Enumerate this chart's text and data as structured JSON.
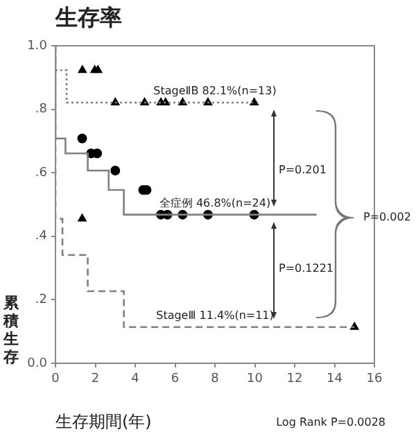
{
  "chart_data": {
    "type": "step",
    "title": "生存率",
    "xlabel": "生存期間(年)",
    "ylabel": "累積生存",
    "xlim": [
      0,
      16
    ],
    "xticks": [
      0,
      2,
      4,
      6,
      8,
      10,
      12,
      14,
      16
    ],
    "ylim": [
      0,
      1
    ],
    "yticks": [
      {
        "value": 0,
        "label": "0.0"
      },
      {
        "value": 0.2,
        "label": ".2"
      },
      {
        "value": 0.4,
        "label": ".4"
      },
      {
        "value": 0.6,
        "label": ".6"
      },
      {
        "value": 0.8,
        "label": ".8"
      },
      {
        "value": 1,
        "label": "1.0"
      }
    ],
    "grid": false,
    "legend": false,
    "series": [
      {
        "name": "StageⅡB 82.1%(n=13)",
        "color": "#808080",
        "line_style": "dotted",
        "marker": "none",
        "x": [
          0,
          0.56,
          2.65,
          10.0
        ],
        "values": [
          1.0,
          0.923,
          0.821,
          0.821
        ]
      },
      {
        "name": "全症例 46.8%(n=24)",
        "color": "#808080",
        "line_style": "solid",
        "marker": "none",
        "x": [
          0,
          0.5,
          1.62,
          2.67,
          3.43,
          4.75,
          13.1
        ],
        "values": [
          1.0,
          0.708,
          0.661,
          0.607,
          0.546,
          0.468,
          0.468
        ]
      },
      {
        "name": "StageⅢ 11.4%(n=11)",
        "color": "#808080",
        "line_style": "dashed",
        "marker": "none",
        "x": [
          0,
          0.35,
          1.62,
          3.43,
          4.75,
          15.0
        ],
        "values": [
          1.0,
          0.455,
          0.341,
          0.227,
          0.114,
          0.114
        ]
      },
      {
        "type": "scatter",
        "color": "#000000",
        "marker": "triangle",
        "x": [
          1.35,
          1.97,
          2.13,
          3.0,
          4.47,
          5.29,
          5.52,
          6.38,
          7.65,
          9.97
        ],
        "values": [
          0.923,
          0.923,
          0.923,
          0.821,
          0.821,
          0.821,
          0.821,
          0.821,
          0.821,
          0.821
        ]
      },
      {
        "type": "scatter",
        "color": "#000000",
        "marker": "circle",
        "x": [
          1.34,
          1.79,
          2.09,
          3.0,
          4.4,
          4.57,
          5.29,
          5.62,
          6.38,
          7.65,
          9.97
        ],
        "values": [
          0.708,
          0.661,
          0.661,
          0.607,
          0.546,
          0.546,
          0.468,
          0.468,
          0.468,
          0.468,
          0.468
        ]
      },
      {
        "type": "scatter",
        "color": "#000000",
        "marker": "triangle",
        "x": [
          1.34,
          15.0
        ],
        "values": [
          0.455,
          0.114
        ]
      }
    ],
    "annotations": [
      "P=0.201",
      "P=0.1221",
      "P=0.002",
      "Log Rank P=0.0028"
    ]
  }
}
